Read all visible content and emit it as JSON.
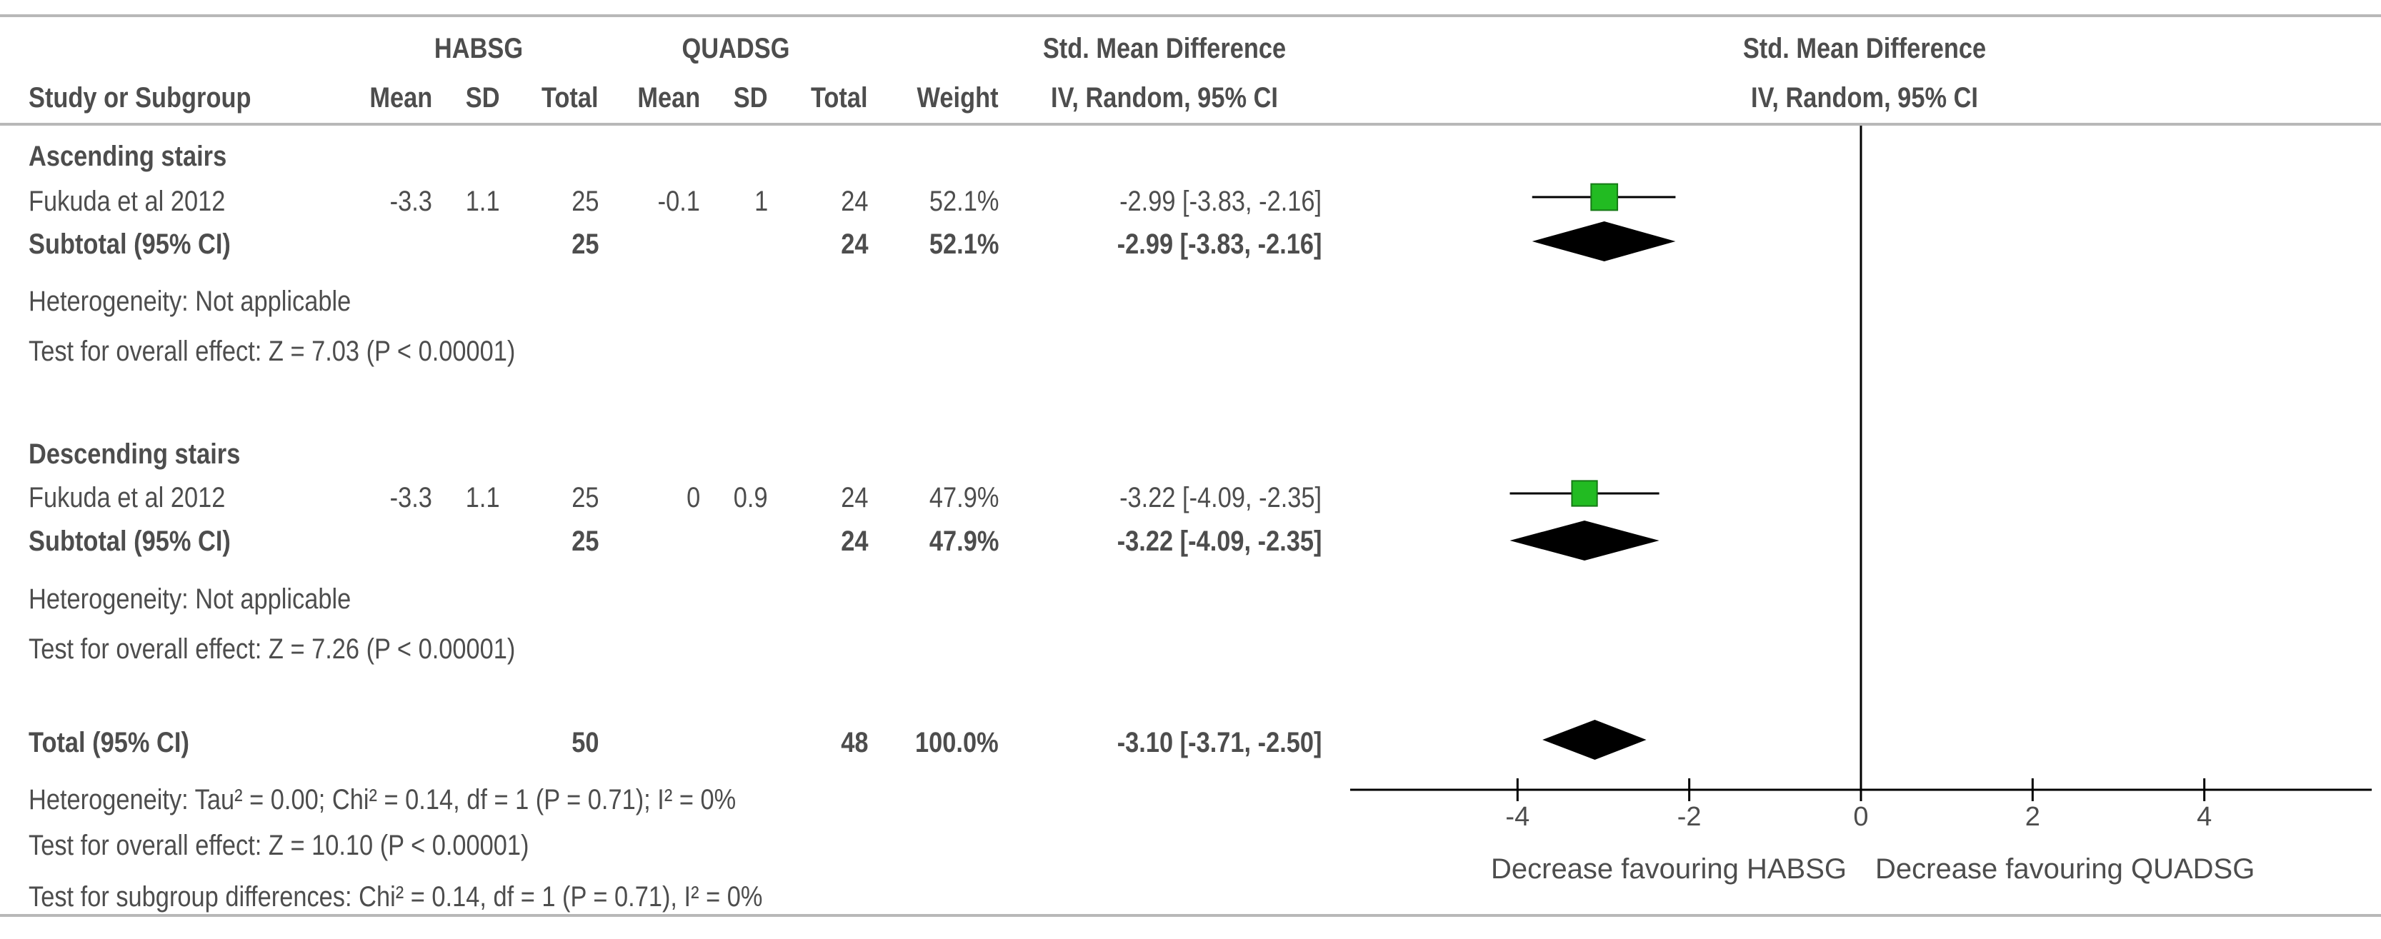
{
  "table": {
    "group1_name": "HABSG",
    "group2_name": "QUADSG",
    "effect_header": "Std. Mean Difference",
    "effect_subheader": "IV, Random, 95% CI",
    "columns": {
      "study": "Study or Subgroup",
      "mean1": "Mean",
      "sd1": "SD",
      "total1": "Total",
      "mean2": "Mean",
      "sd2": "SD",
      "total2": "Total",
      "weight": "Weight"
    },
    "subgroups": [
      {
        "name": "Ascending stairs",
        "study": {
          "name": "Fukuda et al 2012",
          "mean1": "-3.3",
          "sd1": "1.1",
          "total1": "25",
          "mean2": "-0.1",
          "sd2": "1",
          "total2": "24",
          "weight": "52.1%",
          "ci": "-2.99 [-3.83, -2.16]"
        },
        "subtotal": {
          "label": "Subtotal (95% CI)",
          "total1": "25",
          "total2": "24",
          "weight": "52.1%",
          "ci": "-2.99 [-3.83, -2.16]"
        },
        "heterogeneity": "Heterogeneity: Not applicable",
        "overall_effect": "Test for overall effect: Z = 7.03 (P < 0.00001)"
      },
      {
        "name": "Descending stairs",
        "study": {
          "name": "Fukuda et al 2012",
          "mean1": "-3.3",
          "sd1": "1.1",
          "total1": "25",
          "mean2": "0",
          "sd2": "0.9",
          "total2": "24",
          "weight": "47.9%",
          "ci": "-3.22 [-4.09, -2.35]"
        },
        "subtotal": {
          "label": "Subtotal (95% CI)",
          "total1": "25",
          "total2": "24",
          "weight": "47.9%",
          "ci": "-3.22 [-4.09, -2.35]"
        },
        "heterogeneity": "Heterogeneity: Not applicable",
        "overall_effect": "Test for overall effect: Z = 7.26 (P < 0.00001)"
      }
    ],
    "total": {
      "label": "Total (95% CI)",
      "total1": "50",
      "total2": "48",
      "weight": "100.0%",
      "ci": "-3.10 [-3.71, -2.50]"
    },
    "footer": {
      "heterogeneity": "Heterogeneity: Tau² = 0.00; Chi² = 0.14, df = 1 (P = 0.71); I² = 0%",
      "overall_effect": "Test for overall effect: Z = 10.10 (P < 0.00001)",
      "subgroup_diff": "Test for subgroup differences: Chi² = 0.14, df = 1 (P = 0.71), I² = 0%"
    }
  },
  "chart_data": {
    "type": "forest",
    "title": "Std. Mean Difference",
    "subtitle": "IV, Random, 95% CI",
    "xlim": [
      -5.95,
      5.95
    ],
    "ticks": [
      -4,
      -2,
      0,
      2,
      4
    ],
    "tick_labels": [
      "-4",
      "-2",
      "0",
      "2",
      "4"
    ],
    "left_label": "Decrease favouring HABSG",
    "right_label": "Decrease favouring QUADSG",
    "square_color": "#22bb22",
    "diamond_color": "#000000",
    "rows": [
      {
        "label": "Fukuda et al 2012 (Ascending stairs)",
        "kind": "study",
        "estimate": -2.99,
        "lower": -3.83,
        "upper": -2.16,
        "weight": 52.1
      },
      {
        "label": "Subtotal (Ascending stairs)",
        "kind": "diamond",
        "estimate": -2.99,
        "lower": -3.83,
        "upper": -2.16
      },
      {
        "label": "Fukuda et al 2012 (Descending stairs)",
        "kind": "study",
        "estimate": -3.22,
        "lower": -4.09,
        "upper": -2.35,
        "weight": 47.9
      },
      {
        "label": "Subtotal (Descending stairs)",
        "kind": "diamond",
        "estimate": -3.22,
        "lower": -4.09,
        "upper": -2.35
      },
      {
        "label": "Total (95% CI)",
        "kind": "diamond",
        "estimate": -3.1,
        "lower": -3.71,
        "upper": -2.5
      }
    ]
  }
}
